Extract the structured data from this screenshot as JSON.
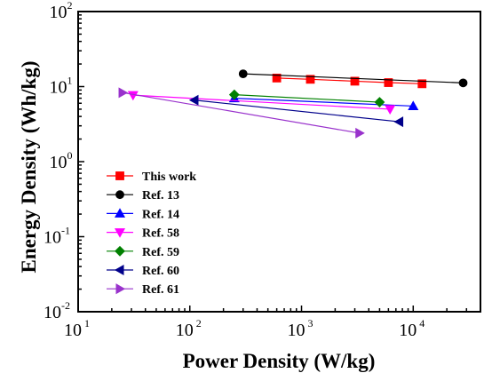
{
  "chart_data": {
    "type": "scatter",
    "title": "",
    "xlabel": "Power Density (W/kg)",
    "ylabel": "Energy Density (Wh/kg)",
    "xscale": "log",
    "yscale": "log",
    "xlim": [
      10,
      40000
    ],
    "ylim": [
      0.01,
      100
    ],
    "x_ticks": [
      {
        "base": "10",
        "exp": "1"
      },
      {
        "base": "10",
        "exp": "2"
      },
      {
        "base": "10",
        "exp": "3"
      },
      {
        "base": "10",
        "exp": "4"
      }
    ],
    "y_ticks": [
      {
        "base": "10",
        "exp": "-2"
      },
      {
        "base": "10",
        "exp": "-1"
      },
      {
        "base": "10",
        "exp": "0"
      },
      {
        "base": "10",
        "exp": "1"
      },
      {
        "base": "10",
        "exp": "2"
      }
    ],
    "grid": false,
    "legend_position": "lower-left",
    "series": [
      {
        "name": "This work",
        "color": "#ff0000",
        "marker": "square",
        "x": [
          600,
          1200,
          3000,
          6000,
          12000
        ],
        "y": [
          13.0,
          12.5,
          11.8,
          11.3,
          10.9
        ]
      },
      {
        "name": "Ref. 13",
        "color": "#000000",
        "marker": "circle",
        "x": [
          300,
          28000
        ],
        "y": [
          14.8,
          11.2
        ]
      },
      {
        "name": "Ref. 14",
        "color": "#0000ff",
        "marker": "triangle-up",
        "x": [
          250,
          10000
        ],
        "y": [
          7.0,
          5.5
        ]
      },
      {
        "name": "Ref. 58",
        "color": "#ff00ff",
        "marker": "triangle-down",
        "x": [
          31,
          6200
        ],
        "y": [
          7.7,
          5.0
        ]
      },
      {
        "name": "Ref. 59",
        "color": "#008000",
        "marker": "diamond",
        "x": [
          250,
          5000
        ],
        "y": [
          7.8,
          6.2
        ]
      },
      {
        "name": "Ref. 60",
        "color": "#00008b",
        "marker": "triangle-left",
        "x": [
          110,
          7500
        ],
        "y": [
          6.6,
          3.4
        ]
      },
      {
        "name": "Ref. 61",
        "color": "#9932cc",
        "marker": "triangle-right",
        "x": [
          25,
          3300
        ],
        "y": [
          8.3,
          2.4
        ]
      }
    ]
  }
}
